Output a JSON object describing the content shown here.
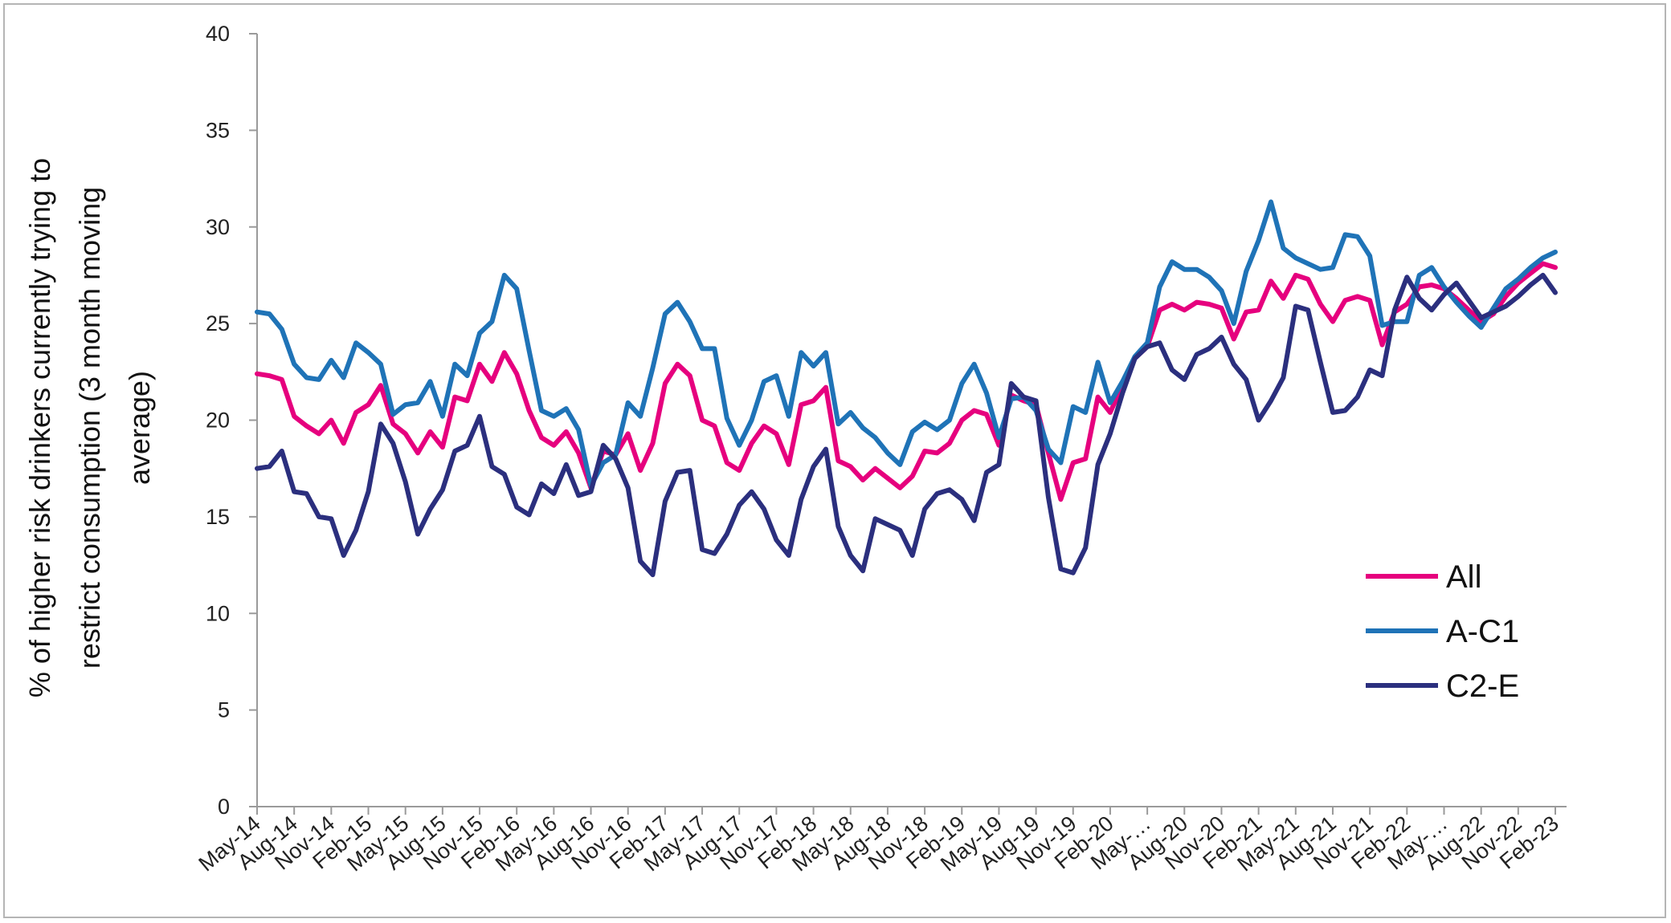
{
  "chart_data": {
    "type": "line",
    "title": "",
    "xlabel": "",
    "ylabel": "% of higher risk drinkers currently trying to restrict consumption (3 month moving average)",
    "ylabel_lines": [
      "% of higher risk drinkers currently trying to",
      "restrict consumption (3 month moving",
      "average)"
    ],
    "ylim": [
      0,
      40
    ],
    "yticks": [
      0,
      5,
      10,
      15,
      20,
      25,
      30,
      35,
      40
    ],
    "x_tick_labels": [
      "May-14",
      "Aug-14",
      "Nov-14",
      "Feb-15",
      "May-15",
      "Aug-15",
      "Nov-15",
      "Feb-16",
      "May-16",
      "Aug-16",
      "Nov-16",
      "Feb-17",
      "May-17",
      "Aug-17",
      "Nov-17",
      "Feb-18",
      "May-18",
      "Aug-18",
      "Nov-18",
      "Feb-19",
      "May-19",
      "Aug-19",
      "Nov-19",
      "Feb-20",
      "May-…",
      "Aug-20",
      "Nov-20",
      "Feb-21",
      "May-21",
      "Aug-21",
      "Nov-21",
      "Feb-22",
      "May-…",
      "Aug-22",
      "Nov-22",
      "Feb-23"
    ],
    "grid": false,
    "legend_position": "right",
    "series": [
      {
        "name": "All",
        "color": "#e6007e",
        "values": [
          22.4,
          22.3,
          22.1,
          20.2,
          19.7,
          19.3,
          20.0,
          18.8,
          20.4,
          20.8,
          21.8,
          19.8,
          19.3,
          18.3,
          19.4,
          18.6,
          21.2,
          21.0,
          22.9,
          22.0,
          23.5,
          22.4,
          20.5,
          19.1,
          18.7,
          19.4,
          18.3,
          16.5,
          18.4,
          18.2,
          19.3,
          17.4,
          18.8,
          21.9,
          22.9,
          22.3,
          20.0,
          19.7,
          17.8,
          17.4,
          18.8,
          19.7,
          19.3,
          17.7,
          20.8,
          21.0,
          21.7,
          17.9,
          17.6,
          16.9,
          17.5,
          17.0,
          16.5,
          17.1,
          18.4,
          18.3,
          18.8,
          20.0,
          20.5,
          20.3,
          18.7,
          21.3,
          21.0,
          20.8,
          18.3,
          15.9,
          17.8,
          18.0,
          21.2,
          20.4,
          21.8,
          23.2,
          23.8,
          25.7,
          26.0,
          25.7,
          26.1,
          26.0,
          25.8,
          24.2,
          25.6,
          25.7,
          27.2,
          26.3,
          27.5,
          27.3,
          26.0,
          25.1,
          26.2,
          26.4,
          26.2,
          23.9,
          25.6,
          26.0,
          26.9,
          27.0,
          26.8,
          26.3,
          25.7,
          25.1,
          25.5,
          26.4,
          27.1,
          27.6,
          28.1,
          27.9
        ]
      },
      {
        "name": "A-C1",
        "color": "#1f73b7",
        "values": [
          25.6,
          25.5,
          24.7,
          22.9,
          22.2,
          22.1,
          23.1,
          22.2,
          24.0,
          23.5,
          22.9,
          20.3,
          20.8,
          20.9,
          22.0,
          20.2,
          22.9,
          22.3,
          24.5,
          25.1,
          27.5,
          26.8,
          23.6,
          20.5,
          20.2,
          20.6,
          19.5,
          16.6,
          17.8,
          18.2,
          20.9,
          20.2,
          22.7,
          25.5,
          26.1,
          25.1,
          23.7,
          23.7,
          20.1,
          18.7,
          20.0,
          22.0,
          22.3,
          20.2,
          23.5,
          22.8,
          23.5,
          19.8,
          20.4,
          19.6,
          19.1,
          18.3,
          17.7,
          19.4,
          19.9,
          19.5,
          20.0,
          21.9,
          22.9,
          21.4,
          19.1,
          21.1,
          21.2,
          20.5,
          18.5,
          17.8,
          20.7,
          20.4,
          23.0,
          20.9,
          22.0,
          23.3,
          24.0,
          26.9,
          28.2,
          27.8,
          27.8,
          27.4,
          26.7,
          25.0,
          27.7,
          29.3,
          31.3,
          28.9,
          28.4,
          28.1,
          27.8,
          27.9,
          29.6,
          29.5,
          28.5,
          24.9,
          25.1,
          25.1,
          27.5,
          27.9,
          26.9,
          26.1,
          25.4,
          24.8,
          25.8,
          26.8,
          27.3,
          27.9,
          28.4,
          28.7
        ]
      },
      {
        "name": "C2-E",
        "color": "#2b2f7e",
        "values": [
          17.5,
          17.6,
          18.4,
          16.3,
          16.2,
          15.0,
          14.9,
          13.0,
          14.3,
          16.3,
          19.8,
          18.8,
          16.8,
          14.1,
          15.4,
          16.4,
          18.4,
          18.7,
          20.2,
          17.6,
          17.2,
          15.5,
          15.1,
          16.7,
          16.2,
          17.7,
          16.1,
          16.3,
          18.7,
          18.0,
          16.5,
          12.7,
          12.0,
          15.8,
          17.3,
          17.4,
          13.3,
          13.1,
          14.1,
          15.6,
          16.3,
          15.4,
          13.8,
          13.0,
          15.9,
          17.6,
          18.5,
          14.5,
          13.0,
          12.2,
          14.9,
          14.6,
          14.3,
          13.0,
          15.4,
          16.2,
          16.4,
          15.9,
          14.8,
          17.3,
          17.7,
          21.9,
          21.2,
          21.0,
          16.0,
          12.3,
          12.1,
          13.4,
          17.7,
          19.3,
          21.4,
          23.2,
          23.8,
          24.0,
          22.6,
          22.1,
          23.4,
          23.7,
          24.3,
          22.9,
          22.1,
          20.0,
          21.0,
          22.2,
          25.9,
          25.7,
          23.0,
          20.4,
          20.5,
          21.2,
          22.6,
          22.3,
          25.7,
          27.4,
          26.3,
          25.7,
          26.5,
          27.1,
          26.2,
          25.3,
          25.6,
          25.9,
          26.4,
          27.0,
          27.5,
          26.6
        ]
      }
    ]
  }
}
